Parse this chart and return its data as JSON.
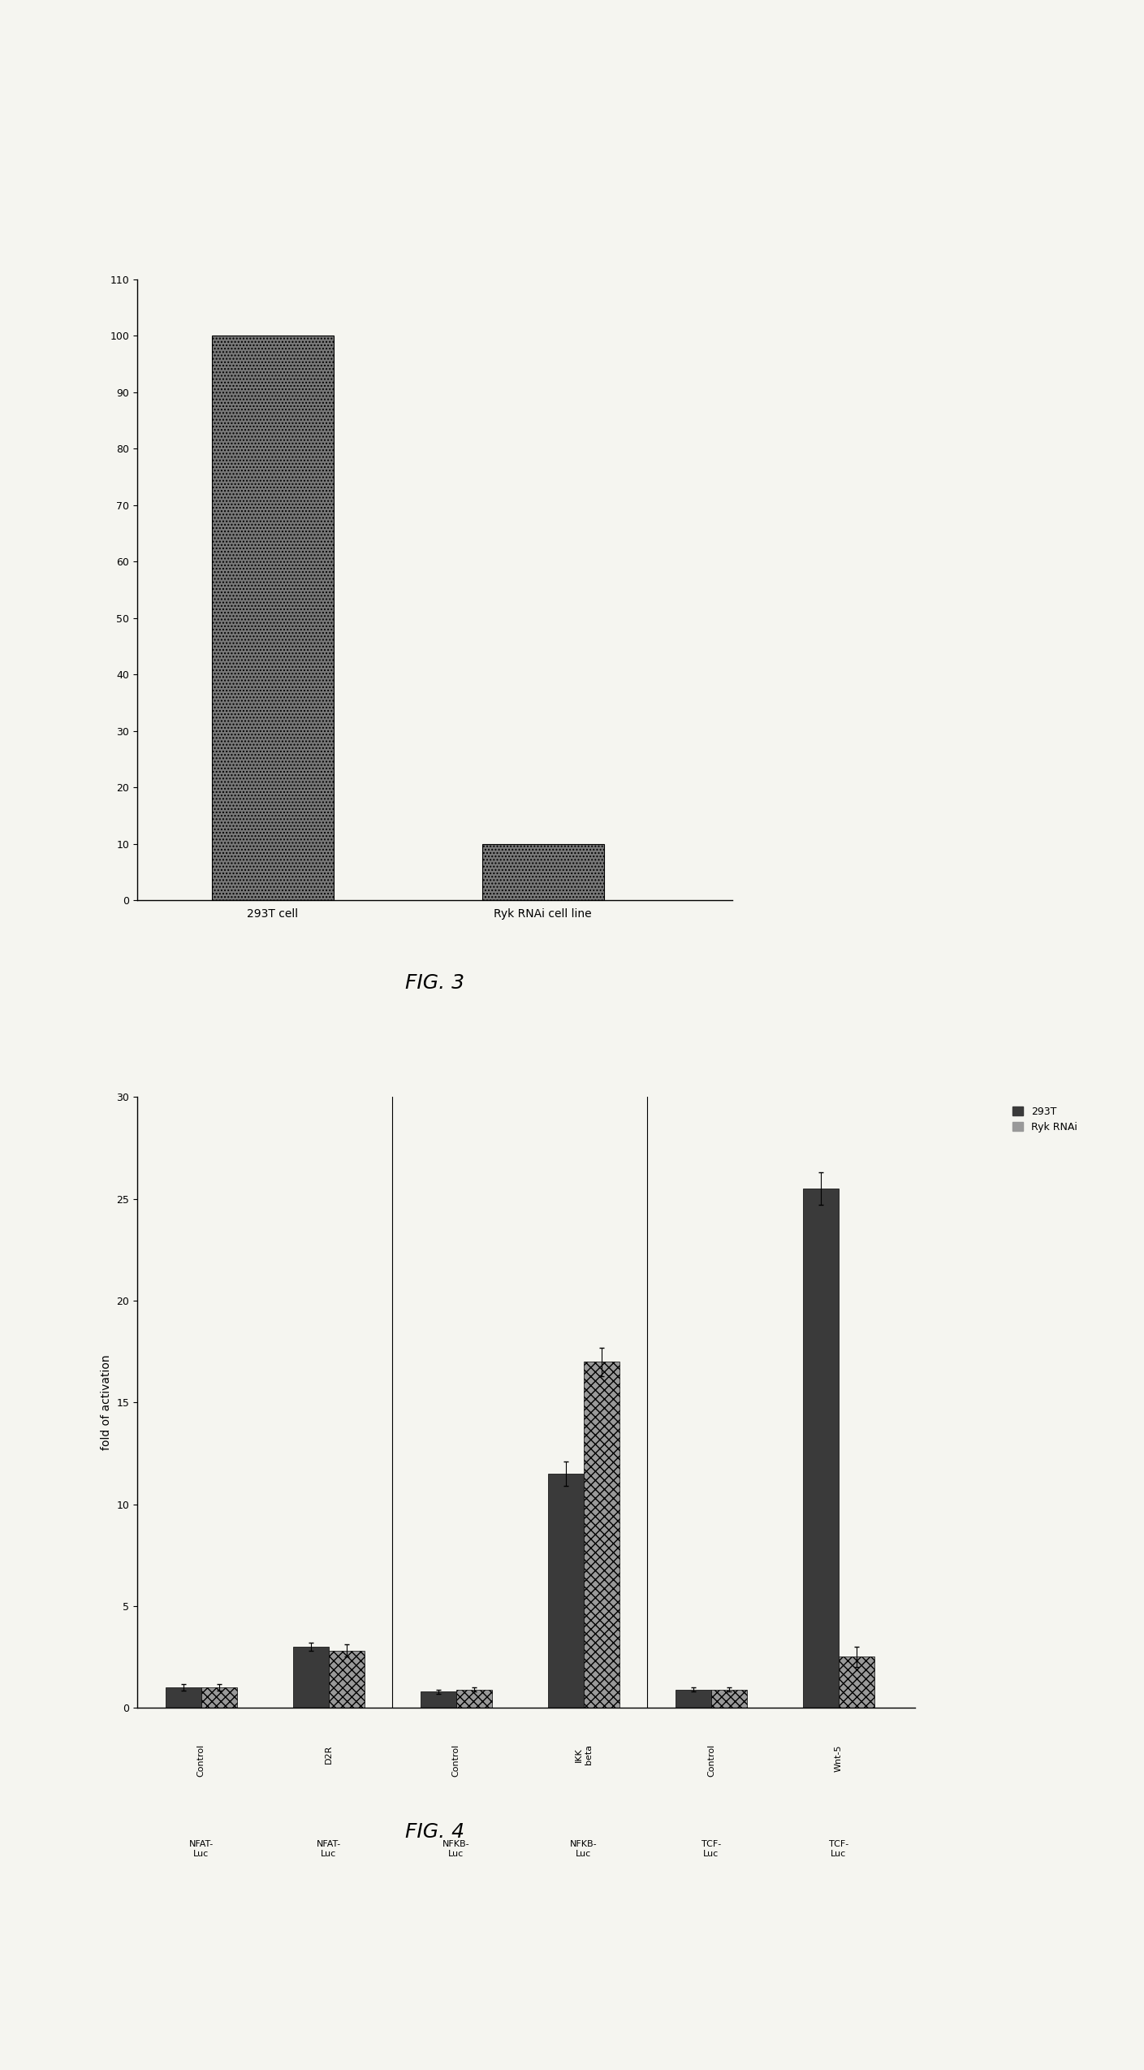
{
  "fig3": {
    "categories": [
      "293T cell",
      "Ryk RNAi cell line"
    ],
    "values": [
      100,
      10
    ],
    "bar_color": "#787878",
    "ylim": [
      0,
      110
    ],
    "yticks": [
      0,
      10,
      20,
      30,
      40,
      50,
      60,
      70,
      80,
      90,
      100,
      110
    ],
    "ylabel": ""
  },
  "fig4": {
    "ylim": [
      0,
      30
    ],
    "yticks": [
      0,
      5,
      10,
      15,
      20,
      25,
      30
    ],
    "ylabel": "fold of activation",
    "color_293T": "#3a3a3a",
    "color_Ryk": "#999999",
    "legend_labels": [
      "293T",
      "Ryk RNAi"
    ],
    "vals_293T": [
      1.0,
      3.0,
      0.8,
      11.5,
      0.9,
      25.5
    ],
    "vals_Ryk": [
      1.0,
      2.8,
      0.9,
      17.0,
      0.9,
      2.5
    ],
    "error_bars_293T": [
      0.15,
      0.2,
      0.1,
      0.6,
      0.1,
      0.8
    ],
    "error_bars_Ryk": [
      0.15,
      0.3,
      0.1,
      0.7,
      0.1,
      0.5
    ],
    "group_labels_top": [
      "Control",
      "D2R",
      "Control",
      "IKK\nbeta",
      "Control",
      "Wnt-5"
    ],
    "group_labels_bottom": [
      "NFAT-\nLuc",
      "NFAT-\nLuc",
      "NFKB-\nLuc",
      "NFKB-\nLuc",
      "TCF-\nLuc",
      "TCF-\nLuc"
    ]
  },
  "fig3_label": "FIG. 3",
  "fig4_label": "FIG. 4",
  "background_color": "#f5f5f0"
}
